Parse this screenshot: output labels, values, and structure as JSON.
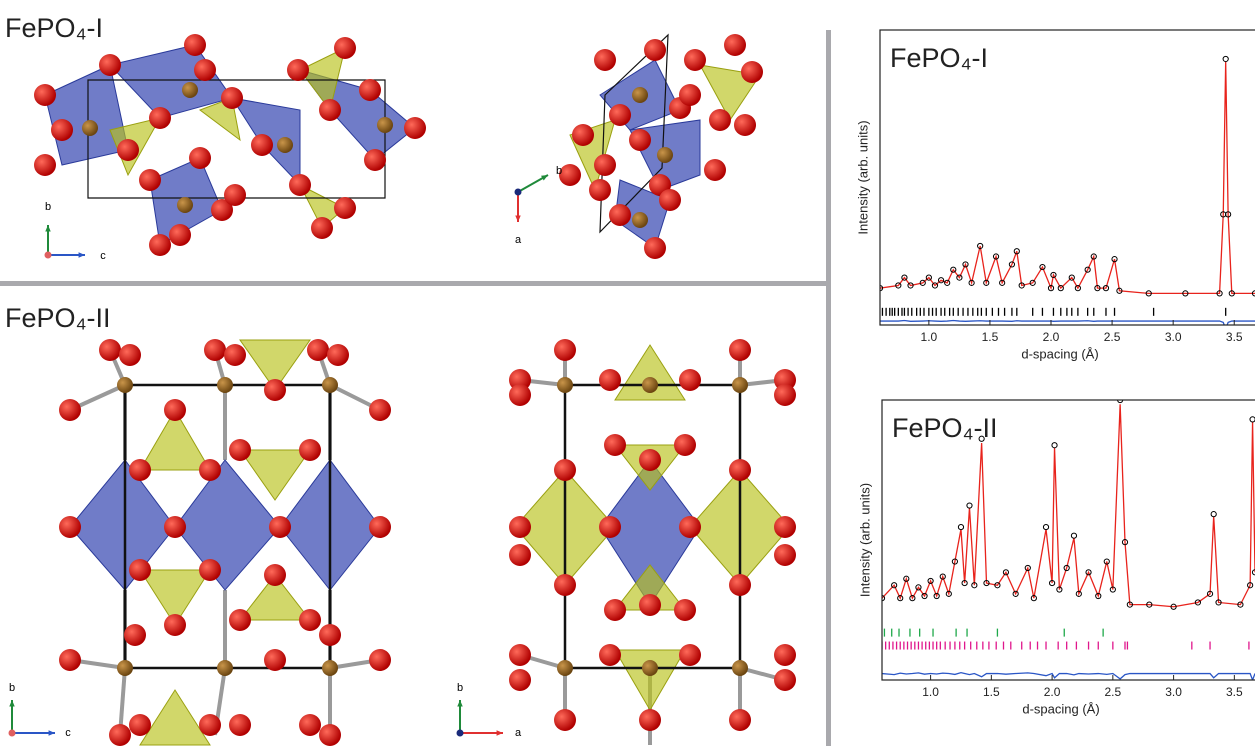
{
  "structures": [
    {
      "title": "FePO₄-I",
      "views": [
        {
          "axes": [
            "b",
            "c"
          ]
        },
        {
          "axes": [
            "b",
            "a"
          ]
        }
      ]
    },
    {
      "title": "FePO₄-II",
      "views": [
        {
          "axes": [
            "b",
            "c"
          ]
        },
        {
          "axes": [
            "b",
            "a"
          ]
        }
      ]
    }
  ],
  "chart_data": [
    {
      "type": "line",
      "title": "FePO₄-I",
      "x_label": "d-spacing (Å)",
      "y_label": "Intensity (arb. units)",
      "xlim": [
        0.6,
        3.67
      ],
      "ylim": [
        -12,
        100
      ],
      "xticks": [
        {
          "value": 1,
          "label": "1.0"
        },
        1.5,
        {
          "value": 2,
          "label": "2.0"
        },
        2.5,
        {
          "value": 3,
          "label": "3.0"
        },
        3.5
      ],
      "x": [
        0.6,
        0.75,
        0.8,
        0.85,
        0.95,
        1.0,
        1.05,
        1.1,
        1.15,
        1.2,
        1.25,
        1.3,
        1.35,
        1.42,
        1.47,
        1.55,
        1.6,
        1.68,
        1.72,
        1.76,
        1.85,
        1.93,
        2.0,
        2.02,
        2.08,
        2.17,
        2.22,
        2.3,
        2.35,
        2.38,
        2.45,
        2.52,
        2.56,
        2.8,
        3.1,
        3.38,
        3.41,
        3.43,
        3.45,
        3.48,
        3.67
      ],
      "series": [
        {
          "color": "#e8231c",
          "style": "line",
          "values": [
            2,
            3,
            6,
            3,
            4,
            6,
            3,
            5,
            4,
            9,
            6,
            11,
            4,
            18,
            4,
            14,
            4,
            11,
            16,
            3,
            4,
            10,
            2,
            7,
            2,
            6,
            2,
            9,
            14,
            2,
            2,
            13,
            1,
            0,
            0,
            0,
            30,
            88,
            30,
            0,
            0
          ]
        },
        {
          "color": "#000000",
          "style": "circles",
          "values": [
            2,
            3,
            6,
            3,
            4,
            6,
            3,
            5,
            4,
            9,
            6,
            11,
            4,
            18,
            4,
            14,
            4,
            11,
            16,
            3,
            4,
            10,
            2,
            7,
            2,
            6,
            2,
            9,
            14,
            2,
            2,
            13,
            1,
            0,
            0,
            0,
            30,
            89,
            30,
            0,
            0
          ]
        },
        {
          "color": "#2a56c6",
          "style": "line",
          "values": [
            -10.5,
            -10.5,
            -10.3,
            -10.6,
            -10.5,
            -10.4,
            -10.5,
            -10.6,
            -10.5,
            -10.3,
            -10.5,
            -10.6,
            -10.5,
            -10.4,
            -10.5,
            -10.5,
            -10.5,
            -10.6,
            -10.4,
            -10.5,
            -10.5,
            -10.5,
            -10.5,
            -10.6,
            -10.5,
            -10.5,
            -10.5,
            -10.4,
            -10.6,
            -10.5,
            -10.5,
            -10.5,
            -10.5,
            -10.5,
            -10.5,
            -10.5,
            -11,
            -13.5,
            -11,
            -10.5,
            -10.5
          ]
        }
      ],
      "reflections": [
        {
          "color": "#000000",
          "level": -7,
          "x": [
            0.62,
            0.65,
            0.68,
            0.7,
            0.72,
            0.75,
            0.78,
            0.8,
            0.83,
            0.86,
            0.9,
            0.93,
            0.96,
            1.0,
            1.03,
            1.06,
            1.1,
            1.13,
            1.17,
            1.2,
            1.24,
            1.28,
            1.32,
            1.36,
            1.4,
            1.43,
            1.47,
            1.52,
            1.57,
            1.62,
            1.68,
            1.72,
            1.85,
            1.93,
            2.02,
            2.08,
            2.13,
            2.17,
            2.22,
            2.3,
            2.35,
            2.45,
            2.52,
            2.84,
            3.43
          ]
        }
      ]
    },
    {
      "type": "line",
      "title": "FePO₄-II",
      "x_label": "d-spacing (Å)",
      "y_label": "Intensity (arb. units)",
      "xlim": [
        0.6,
        3.67
      ],
      "ylim": [
        -30,
        100
      ],
      "xticks": [
        {
          "value": 1,
          "label": "1.0"
        },
        1.5,
        {
          "value": 2,
          "label": "2.0"
        },
        2.5,
        {
          "value": 3,
          "label": "3.0"
        },
        3.5
      ],
      "x": [
        0.6,
        0.7,
        0.75,
        0.8,
        0.85,
        0.9,
        0.95,
        1.0,
        1.05,
        1.1,
        1.15,
        1.2,
        1.25,
        1.28,
        1.32,
        1.36,
        1.42,
        1.46,
        1.55,
        1.62,
        1.7,
        1.8,
        1.85,
        1.95,
        2.0,
        2.02,
        2.06,
        2.12,
        2.18,
        2.22,
        2.3,
        2.38,
        2.45,
        2.5,
        2.56,
        2.6,
        2.64,
        2.8,
        3.0,
        3.2,
        3.3,
        3.33,
        3.37,
        3.55,
        3.63,
        3.65,
        3.67
      ],
      "series": [
        {
          "color": "#e8231c",
          "style": "line",
          "values": [
            8,
            14,
            8,
            17,
            8,
            13,
            9,
            16,
            9,
            18,
            10,
            25,
            40,
            15,
            50,
            14,
            80,
            15,
            14,
            20,
            10,
            22,
            8,
            40,
            15,
            78,
            12,
            22,
            36,
            10,
            20,
            9,
            25,
            12,
            98,
            34,
            5,
            5,
            4,
            6,
            10,
            46,
            6,
            5,
            14,
            90,
            20
          ]
        },
        {
          "color": "#000000",
          "style": "circles",
          "values": [
            8,
            14,
            8,
            17,
            8,
            13,
            9,
            16,
            9,
            18,
            10,
            25,
            41,
            15,
            51,
            14,
            82,
            15,
            14,
            20,
            10,
            22,
            8,
            41,
            15,
            79,
            12,
            22,
            37,
            10,
            20,
            9,
            25,
            12,
            100,
            34,
            5,
            5,
            4,
            6,
            10,
            47,
            6,
            5,
            14,
            91,
            20
          ]
        },
        {
          "color": "#2a56c6",
          "style": "line",
          "values": [
            -27,
            -27.5,
            -26.8,
            -27.2,
            -27,
            -26.7,
            -27.3,
            -27,
            -27.2,
            -26.8,
            -27,
            -27.4,
            -26.6,
            -27,
            -27.5,
            -27,
            -28.5,
            -27,
            -27,
            -27.3,
            -27,
            -26.7,
            -27,
            -28,
            -27,
            -29,
            -27,
            -27,
            -27.6,
            -27,
            -27.2,
            -27,
            -27.4,
            -27,
            -29.5,
            -27.5,
            -27,
            -27,
            -27,
            -27,
            -27,
            -29,
            -27,
            -27,
            -27,
            -30,
            -27
          ]
        }
      ],
      "reflections": [
        {
          "color": "#1fa84a",
          "level": -8,
          "x": [
            0.62,
            0.68,
            0.74,
            0.83,
            0.91,
            1.02,
            1.21,
            1.3,
            1.55,
            2.1,
            2.42
          ]
        },
        {
          "color": "#e0168c",
          "level": -14,
          "x": [
            0.6,
            0.63,
            0.66,
            0.69,
            0.72,
            0.75,
            0.78,
            0.81,
            0.84,
            0.87,
            0.9,
            0.93,
            0.96,
            0.99,
            1.02,
            1.05,
            1.08,
            1.12,
            1.16,
            1.2,
            1.24,
            1.28,
            1.33,
            1.38,
            1.43,
            1.48,
            1.54,
            1.6,
            1.66,
            1.75,
            1.82,
            1.88,
            1.95,
            2.05,
            2.12,
            2.2,
            2.3,
            2.38,
            2.5,
            2.6,
            2.62,
            3.15,
            3.3,
            3.62
          ]
        }
      ]
    }
  ]
}
